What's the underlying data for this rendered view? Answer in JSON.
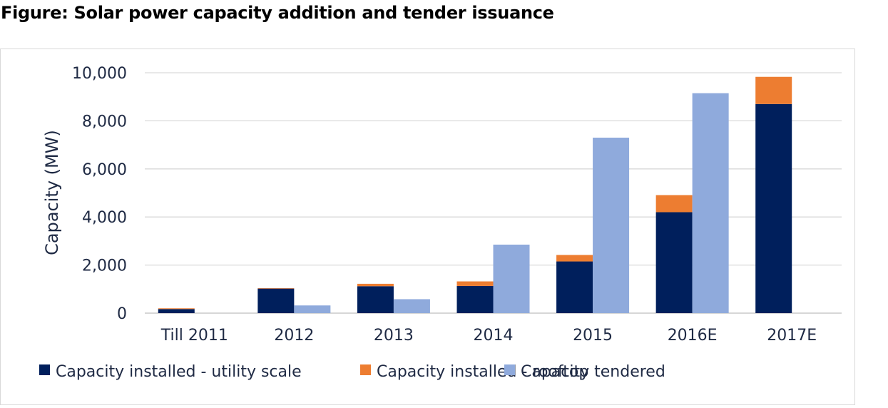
{
  "figure_title": "Figure: Solar power capacity addition and tender issuance",
  "chart_data": {
    "type": "bar",
    "ylabel": "Capacity (MW)",
    "ylim": [
      0,
      10000
    ],
    "yticks": [
      "0",
      "2,000",
      "4,000",
      "6,000",
      "8,000",
      "10,000"
    ],
    "ytick_values": [
      0,
      2000,
      4000,
      6000,
      8000,
      10000
    ],
    "categories": [
      "Till 2011",
      "2012",
      "2013",
      "2014",
      "2015",
      "2016E",
      "2017E"
    ],
    "gridlines": true,
    "legend_position": "bottom",
    "series": [
      {
        "name": "Capacity installed - utility scale",
        "color": "#001f5c",
        "stack": "installed",
        "values": [
          170,
          1020,
          1120,
          1130,
          2150,
          4200,
          8700
        ]
      },
      {
        "name": "Capacity installed - rooftop",
        "color": "#ed7d31",
        "stack": "installed",
        "values": [
          30,
          20,
          100,
          190,
          270,
          710,
          1130
        ]
      },
      {
        "name": "Capacity tendered",
        "color": "#8faadc",
        "stack": "tendered",
        "values": [
          0,
          320,
          580,
          2850,
          7300,
          9150,
          0
        ]
      }
    ]
  }
}
